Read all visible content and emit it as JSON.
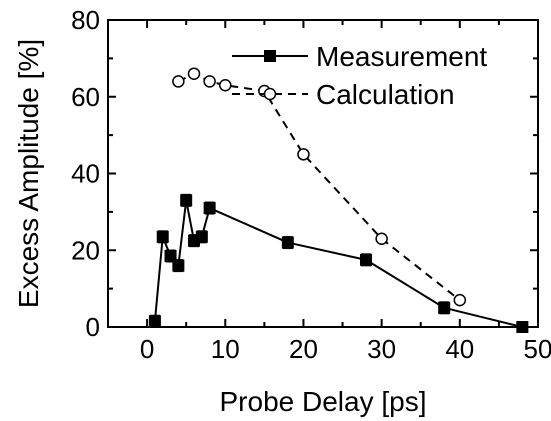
{
  "chart_data": {
    "type": "line",
    "xlabel": "Probe Delay [ps]",
    "ylabel": "Excess Amplitude [%]",
    "xlim": [
      -5,
      50
    ],
    "ylim": [
      0,
      80
    ],
    "xticks": [
      0,
      10,
      20,
      30,
      40,
      50
    ],
    "yticks": [
      0,
      20,
      40,
      60,
      80
    ],
    "legend": {
      "placement": "top-right"
    },
    "series": [
      {
        "name": "Measurement",
        "style": "solid",
        "marker": "filled-square",
        "color": "#000000",
        "x": [
          1,
          2,
          3,
          4,
          5,
          6,
          7,
          8,
          18,
          28,
          38,
          48
        ],
        "y": [
          1.5,
          23.5,
          18.5,
          16,
          33,
          22.5,
          23.5,
          31,
          22,
          17.5,
          5,
          0
        ],
        "error": [
          1.5,
          1.5,
          1.5,
          1.5,
          1.5,
          1.5,
          1.5,
          1.5,
          1.5,
          1.5,
          1.5,
          0
        ]
      },
      {
        "name": "Calculation",
        "style": "dashed",
        "marker": "open-circle",
        "color": "#000000",
        "x": [
          4,
          6,
          8,
          10,
          15,
          20,
          30,
          40
        ],
        "y": [
          64,
          66,
          64,
          63,
          61.5,
          45,
          23,
          7
        ]
      }
    ]
  }
}
